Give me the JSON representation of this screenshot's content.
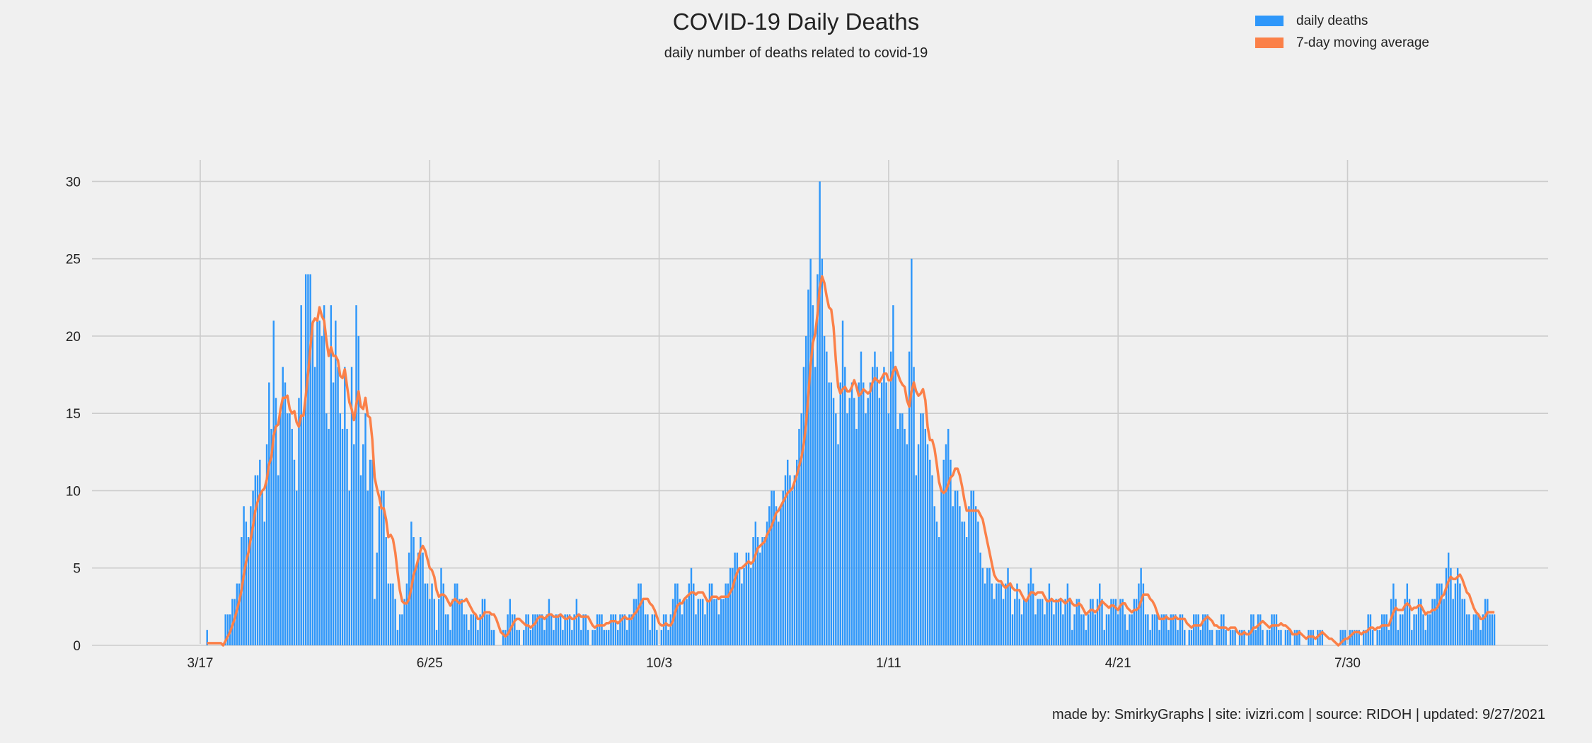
{
  "chart_data": {
    "type": "bar",
    "title": "COVID-19 Daily Deaths",
    "subtitle": "daily number of deaths related to covid-19",
    "xlabel": "",
    "ylabel": "",
    "ylim": [
      0,
      31.5
    ],
    "yticks": [
      0,
      5,
      10,
      15,
      20,
      25,
      30
    ],
    "grid": true,
    "legend_position": "top-right",
    "x_start_index": -3,
    "x_end_index": 598,
    "xticks": [
      {
        "index": 0,
        "label": "3/17"
      },
      {
        "index": 100,
        "label": "6/25"
      },
      {
        "index": 200,
        "label": "10/3"
      },
      {
        "index": 300,
        "label": "1/11"
      },
      {
        "index": 400,
        "label": "4/21"
      },
      {
        "index": 500,
        "label": "7/30"
      }
    ],
    "first_day_index": 3,
    "colors": {
      "bars": "#2e97fa",
      "line": "#fb8048",
      "grid": "#cccccc",
      "background": "#f0f0f0"
    },
    "anchors": [
      [
        3,
        1
      ],
      [
        4,
        0
      ],
      [
        10,
        0
      ],
      [
        11,
        2
      ],
      [
        13,
        2
      ],
      [
        15,
        3
      ],
      [
        17,
        4
      ],
      [
        19,
        9
      ],
      [
        21,
        7
      ],
      [
        23,
        10
      ],
      [
        25,
        11
      ],
      [
        26,
        12
      ],
      [
        28,
        8
      ],
      [
        30,
        17
      ],
      [
        31,
        14
      ],
      [
        32,
        21
      ],
      [
        34,
        11
      ],
      [
        36,
        18
      ],
      [
        38,
        15
      ],
      [
        40,
        14
      ],
      [
        42,
        10
      ],
      [
        44,
        22
      ],
      [
        45,
        15
      ],
      [
        46,
        24
      ],
      [
        48,
        24
      ],
      [
        49,
        21
      ],
      [
        50,
        18
      ],
      [
        51,
        21
      ],
      [
        52,
        21
      ],
      [
        53,
        20
      ],
      [
        54,
        22
      ],
      [
        55,
        15
      ],
      [
        56,
        14
      ],
      [
        57,
        22
      ],
      [
        58,
        17
      ],
      [
        59,
        21
      ],
      [
        61,
        15
      ],
      [
        62,
        14
      ],
      [
        63,
        18
      ],
      [
        64,
        14
      ],
      [
        65,
        10
      ],
      [
        66,
        18
      ],
      [
        67,
        13
      ],
      [
        68,
        22
      ],
      [
        69,
        20
      ],
      [
        70,
        11
      ],
      [
        71,
        13
      ],
      [
        72,
        15
      ],
      [
        73,
        10
      ],
      [
        74,
        12
      ],
      [
        75,
        12
      ],
      [
        76,
        3
      ],
      [
        78,
        9
      ],
      [
        79,
        10
      ],
      [
        80,
        10
      ],
      [
        82,
        4
      ],
      [
        84,
        4
      ],
      [
        86,
        1
      ],
      [
        88,
        2
      ],
      [
        90,
        4
      ],
      [
        92,
        8
      ],
      [
        94,
        5
      ],
      [
        96,
        7
      ],
      [
        98,
        4
      ],
      [
        100,
        3
      ],
      [
        101,
        4
      ],
      [
        103,
        1
      ],
      [
        105,
        5
      ],
      [
        107,
        2
      ],
      [
        109,
        1
      ],
      [
        111,
        4
      ],
      [
        113,
        3
      ],
      [
        115,
        2
      ],
      [
        117,
        1
      ],
      [
        119,
        2
      ],
      [
        121,
        1
      ],
      [
        123,
        3
      ],
      [
        125,
        2
      ],
      [
        127,
        1
      ],
      [
        130,
        0
      ],
      [
        133,
        1
      ],
      [
        135,
        3
      ],
      [
        138,
        1
      ],
      [
        140,
        0
      ],
      [
        142,
        2
      ],
      [
        144,
        1
      ],
      [
        146,
        2
      ],
      [
        148,
        2
      ],
      [
        150,
        1
      ],
      [
        152,
        3
      ],
      [
        154,
        1
      ],
      [
        156,
        2
      ],
      [
        158,
        1
      ],
      [
        160,
        2
      ],
      [
        162,
        1
      ],
      [
        164,
        3
      ],
      [
        166,
        1
      ],
      [
        168,
        2
      ],
      [
        170,
        0
      ],
      [
        172,
        1
      ],
      [
        174,
        2
      ],
      [
        176,
        1
      ],
      [
        178,
        1
      ],
      [
        180,
        2
      ],
      [
        182,
        1
      ],
      [
        184,
        2
      ],
      [
        186,
        1
      ],
      [
        188,
        2
      ],
      [
        190,
        3
      ],
      [
        192,
        4
      ],
      [
        194,
        2
      ],
      [
        196,
        1
      ],
      [
        198,
        2
      ],
      [
        200,
        0
      ],
      [
        202,
        2
      ],
      [
        204,
        1
      ],
      [
        206,
        3
      ],
      [
        208,
        4
      ],
      [
        210,
        2
      ],
      [
        212,
        3
      ],
      [
        214,
        5
      ],
      [
        216,
        2
      ],
      [
        218,
        3
      ],
      [
        220,
        2
      ],
      [
        222,
        4
      ],
      [
        224,
        3
      ],
      [
        226,
        2
      ],
      [
        228,
        3
      ],
      [
        230,
        4
      ],
      [
        232,
        5
      ],
      [
        234,
        6
      ],
      [
        236,
        4
      ],
      [
        238,
        6
      ],
      [
        240,
        5
      ],
      [
        242,
        8
      ],
      [
        244,
        6
      ],
      [
        246,
        7
      ],
      [
        248,
        9
      ],
      [
        250,
        10
      ],
      [
        252,
        8
      ],
      [
        254,
        10
      ],
      [
        256,
        12
      ],
      [
        258,
        10
      ],
      [
        260,
        12
      ],
      [
        262,
        15
      ],
      [
        264,
        20
      ],
      [
        266,
        25
      ],
      [
        268,
        18
      ],
      [
        270,
        30
      ],
      [
        272,
        20
      ],
      [
        274,
        17
      ],
      [
        276,
        16
      ],
      [
        278,
        13
      ],
      [
        280,
        21
      ],
      [
        282,
        15
      ],
      [
        284,
        17
      ],
      [
        286,
        14
      ],
      [
        288,
        19
      ],
      [
        290,
        15
      ],
      [
        292,
        17
      ],
      [
        294,
        19
      ],
      [
        296,
        16
      ],
      [
        298,
        18
      ],
      [
        300,
        15
      ],
      [
        302,
        22
      ],
      [
        304,
        14
      ],
      [
        306,
        15
      ],
      [
        308,
        13
      ],
      [
        310,
        25
      ],
      [
        312,
        11
      ],
      [
        314,
        15
      ],
      [
        316,
        14
      ],
      [
        318,
        12
      ],
      [
        320,
        9
      ],
      [
        322,
        7
      ],
      [
        324,
        12
      ],
      [
        326,
        14
      ],
      [
        328,
        9
      ],
      [
        330,
        10
      ],
      [
        332,
        8
      ],
      [
        334,
        7
      ],
      [
        336,
        10
      ],
      [
        338,
        9
      ],
      [
        340,
        6
      ],
      [
        342,
        4
      ],
      [
        344,
        5
      ],
      [
        346,
        3
      ],
      [
        348,
        4
      ],
      [
        350,
        3
      ],
      [
        352,
        5
      ],
      [
        354,
        2
      ],
      [
        356,
        4
      ],
      [
        358,
        2
      ],
      [
        360,
        3
      ],
      [
        362,
        5
      ],
      [
        364,
        2
      ],
      [
        366,
        3
      ],
      [
        368,
        2
      ],
      [
        370,
        4
      ],
      [
        372,
        2
      ],
      [
        374,
        3
      ],
      [
        376,
        2
      ],
      [
        378,
        4
      ],
      [
        380,
        1
      ],
      [
        382,
        3
      ],
      [
        384,
        2
      ],
      [
        386,
        1
      ],
      [
        388,
        3
      ],
      [
        390,
        2
      ],
      [
        392,
        4
      ],
      [
        394,
        1
      ],
      [
        396,
        2
      ],
      [
        398,
        3
      ],
      [
        400,
        2
      ],
      [
        402,
        3
      ],
      [
        404,
        1
      ],
      [
        406,
        2
      ],
      [
        408,
        3
      ],
      [
        410,
        5
      ],
      [
        412,
        2
      ],
      [
        414,
        1
      ],
      [
        416,
        2
      ],
      [
        418,
        1
      ],
      [
        420,
        2
      ],
      [
        422,
        1
      ],
      [
        424,
        2
      ],
      [
        426,
        1
      ],
      [
        428,
        2
      ],
      [
        430,
        0
      ],
      [
        432,
        1
      ],
      [
        434,
        2
      ],
      [
        436,
        1
      ],
      [
        438,
        2
      ],
      [
        440,
        1
      ],
      [
        442,
        0
      ],
      [
        444,
        1
      ],
      [
        446,
        2
      ],
      [
        448,
        0
      ],
      [
        450,
        1
      ],
      [
        452,
        0
      ],
      [
        454,
        1
      ],
      [
        456,
        0
      ],
      [
        458,
        2
      ],
      [
        460,
        1
      ],
      [
        462,
        2
      ],
      [
        464,
        0
      ],
      [
        466,
        1
      ],
      [
        468,
        2
      ],
      [
        470,
        1
      ],
      [
        472,
        0
      ],
      [
        474,
        1
      ],
      [
        476,
        0
      ],
      [
        478,
        1
      ],
      [
        480,
        0
      ],
      [
        482,
        0
      ],
      [
        484,
        1
      ],
      [
        486,
        0
      ],
      [
        488,
        1
      ],
      [
        490,
        0
      ],
      [
        492,
        0
      ],
      [
        494,
        0
      ],
      [
        496,
        0
      ],
      [
        498,
        1
      ],
      [
        500,
        0
      ],
      [
        502,
        1
      ],
      [
        504,
        1
      ],
      [
        506,
        0
      ],
      [
        508,
        1
      ],
      [
        510,
        2
      ],
      [
        512,
        0
      ],
      [
        514,
        1
      ],
      [
        516,
        2
      ],
      [
        518,
        1
      ],
      [
        520,
        4
      ],
      [
        522,
        1
      ],
      [
        524,
        2
      ],
      [
        526,
        4
      ],
      [
        528,
        1
      ],
      [
        530,
        2
      ],
      [
        532,
        3
      ],
      [
        534,
        1
      ],
      [
        536,
        2
      ],
      [
        538,
        3
      ],
      [
        540,
        4
      ],
      [
        542,
        3
      ],
      [
        544,
        6
      ],
      [
        546,
        3
      ],
      [
        548,
        5
      ],
      [
        550,
        3
      ],
      [
        552,
        2
      ],
      [
        554,
        1
      ],
      [
        556,
        2
      ],
      [
        558,
        1
      ],
      [
        560,
        3
      ],
      [
        562,
        2
      ],
      [
        564,
        2
      ]
    ],
    "series": [
      {
        "name": "daily deaths",
        "kind": "bar",
        "note": "daily values are expanded from the anchor list"
      },
      {
        "name": "7-day moving average",
        "kind": "line",
        "note": "computed as trailing 7-day mean of daily deaths"
      }
    ]
  },
  "legend": {
    "items": [
      {
        "label": "daily deaths",
        "color": "#2e97fa"
      },
      {
        "label": "7-day moving average",
        "color": "#fb8048"
      }
    ]
  },
  "footer": {
    "text": "made by: SmirkyGraphs  |  site: ivizri.com  |  source: RIDOH  |  updated: 9/27/2021"
  }
}
